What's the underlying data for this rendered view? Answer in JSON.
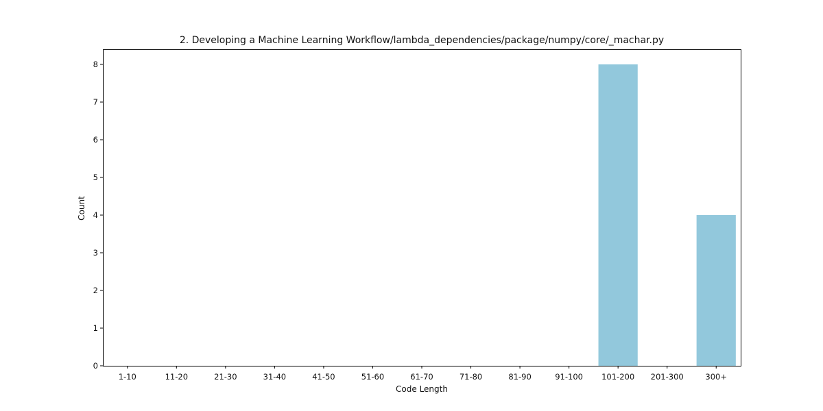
{
  "chart_data": {
    "type": "bar",
    "title": "2. Developing a Machine Learning Workflow/lambda_dependencies/package/numpy/core/_machar.py",
    "xlabel": "Code Length",
    "ylabel": "Count",
    "categories": [
      "1-10",
      "11-20",
      "21-30",
      "31-40",
      "41-50",
      "51-60",
      "61-70",
      "71-80",
      "81-90",
      "91-100",
      "101-200",
      "201-300",
      "300+"
    ],
    "values": [
      0,
      0,
      0,
      0,
      0,
      0,
      0,
      0,
      0,
      0,
      8,
      0,
      4
    ],
    "ylim": [
      0,
      8.4
    ],
    "yticks": [
      0,
      1,
      2,
      3,
      4,
      5,
      6,
      7,
      8
    ],
    "grid": false,
    "bar_color": "#92c8dc"
  }
}
